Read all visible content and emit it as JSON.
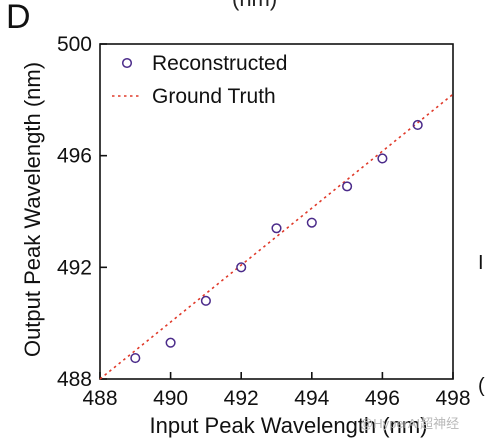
{
  "panel_letter": "D",
  "top_fragment": "(nm)",
  "watermark": "@HyperAI超神经",
  "edge_fragments": [
    "I",
    "("
  ],
  "chart_data": {
    "type": "scatter",
    "xlabel": "Input Peak Wavelength (nm)",
    "ylabel": "Output Peak Wavelength (nm)",
    "xlim": [
      488,
      498
    ],
    "ylim": [
      488,
      500
    ],
    "xticks": [
      488,
      490,
      492,
      494,
      496,
      498
    ],
    "yticks": [
      488,
      492,
      496,
      500
    ],
    "legend_position": "top-left",
    "grid": false,
    "series": [
      {
        "name": "Reconstructed",
        "kind": "scatter",
        "marker": "open-circle",
        "color": "#4b2b8a",
        "x": [
          489,
          490,
          491,
          492,
          493,
          494,
          495,
          496,
          497
        ],
        "y": [
          488.75,
          489.3,
          490.8,
          492.0,
          493.4,
          493.6,
          494.9,
          495.9,
          497.1
        ]
      },
      {
        "name": "Ground Truth",
        "kind": "line",
        "style": "dotted",
        "color": "#e03a2a",
        "x": [
          488,
          498
        ],
        "y": [
          488,
          498.2
        ]
      }
    ]
  }
}
